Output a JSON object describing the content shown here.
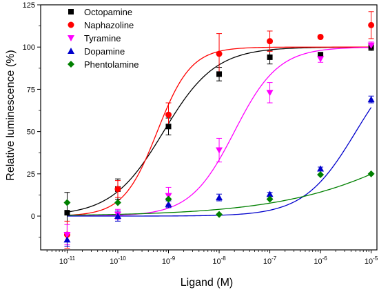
{
  "chart_data": {
    "type": "scatter",
    "xlabel": "Ligand (M)",
    "ylabel": "Relative luminescence (%)",
    "x_scale": "log",
    "xlim": [
      3e-12,
      1.3e-05
    ],
    "ylim": [
      -20,
      125
    ],
    "x_ticks": [
      1e-11,
      1e-10,
      1e-09,
      1e-08,
      1e-07,
      1e-06,
      1e-05
    ],
    "x_tick_labels": [
      {
        "base": "10",
        "exp": "-11"
      },
      {
        "base": "10",
        "exp": "-10"
      },
      {
        "base": "10",
        "exp": "-9"
      },
      {
        "base": "10",
        "exp": "-8"
      },
      {
        "base": "10",
        "exp": "-7"
      },
      {
        "base": "10",
        "exp": "-6"
      },
      {
        "base": "10",
        "exp": "-5"
      }
    ],
    "y_ticks": [
      0,
      25,
      50,
      75,
      100,
      125
    ],
    "y_tick_labels": [
      "0",
      "25",
      "50",
      "75",
      "100",
      "125"
    ],
    "grid": false,
    "legend": "top-left",
    "series": [
      {
        "name": "Octopamine",
        "marker": "square",
        "color": "#000000",
        "x": [
          1e-11,
          1e-10,
          1e-09,
          1e-08,
          1e-07,
          1e-06,
          1e-05
        ],
        "y": [
          2,
          16,
          53,
          84,
          94,
          95.5,
          100
        ],
        "error": [
          12,
          6,
          5,
          4,
          4,
          0,
          2
        ],
        "fit": {
          "bottom": 0,
          "top": 100,
          "ec50": 8e-10,
          "hill": 0.85
        }
      },
      {
        "name": "Naphazoline",
        "marker": "circle",
        "color": "#ff0000",
        "x": [
          1e-11,
          1e-10,
          1e-09,
          1e-08,
          1e-07,
          1e-06,
          1e-05
        ],
        "y": [
          -11,
          16,
          60,
          96,
          103.5,
          106,
          113
        ],
        "error": [
          8,
          5,
          7,
          12,
          6,
          1,
          8
        ],
        "fit": {
          "bottom": 0,
          "top": 100,
          "ec50": 6e-10,
          "hill": 1.3
        }
      },
      {
        "name": "Tyramine",
        "marker": "triangle-down",
        "color": "#ff00ff",
        "x": [
          1e-11,
          1e-10,
          1e-09,
          1e-08,
          1e-07,
          1e-06,
          1e-05
        ],
        "y": [
          -11,
          1,
          12,
          39,
          73,
          93,
          101
        ],
        "error": [
          6,
          3,
          5,
          7,
          6,
          2,
          2
        ],
        "fit": {
          "bottom": 0,
          "top": 100,
          "ec50": 2e-08,
          "hill": 1.0
        }
      },
      {
        "name": "Dopamine",
        "marker": "triangle-up",
        "color": "#0000cc",
        "x": [
          1e-11,
          1e-10,
          1e-09,
          1e-08,
          1e-07,
          1e-06,
          1e-05
        ],
        "y": [
          -14,
          0,
          7,
          11,
          13,
          28,
          69
        ],
        "error": [
          4,
          3,
          2,
          2,
          1,
          1,
          2
        ],
        "fit": {
          "bottom": 0,
          "top": 100,
          "ec50": 5e-06,
          "hill": 0.85
        }
      },
      {
        "name": "Phentolamine",
        "marker": "diamond",
        "color": "#008000",
        "x": [
          1e-11,
          1e-10,
          1e-09,
          1e-08,
          1e-07,
          1e-06,
          1e-05
        ],
        "y": [
          8,
          8,
          10,
          1,
          10,
          24.5,
          25
        ],
        "error": [
          0,
          0,
          0,
          0,
          0,
          0,
          0
        ],
        "fit": {
          "bottom": 0,
          "top": 100,
          "ec50": 0.0004,
          "hill": 0.3
        }
      }
    ]
  }
}
